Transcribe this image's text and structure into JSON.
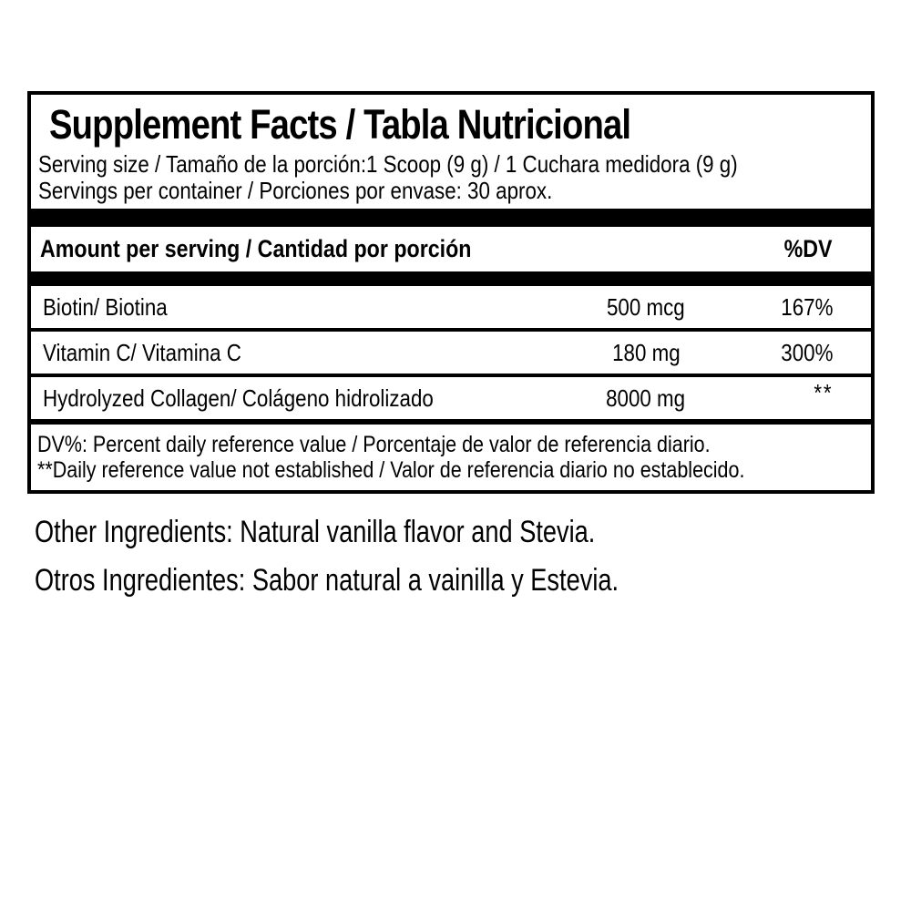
{
  "label": {
    "title": "Supplement Facts / Tabla Nutricional",
    "serving_size": "Serving size / Tamaño de la porción:1 Scoop (9 g) / 1 Cuchara medidora (9 g)",
    "servings_per_container": "Servings per container / Porciones por envase: 30 aprox.",
    "amount_header": "Amount per serving / Cantidad por porción",
    "dv_header": "%DV",
    "rows": [
      {
        "name": "Biotin/ Biotina",
        "amount": "500 mcg",
        "dv": "167%"
      },
      {
        "name": "Vitamin C/ Vitamina C",
        "amount": "180 mg",
        "dv": "300%"
      },
      {
        "name": "Hydrolyzed Collagen/ Colágeno hidrolizado",
        "amount": "8000 mg",
        "dv": "**"
      }
    ],
    "footnotes": [
      "DV%: Percent daily reference value / Porcentaje de valor de referencia diario.",
      "**Daily reference value not established /  Valor de referencia diario no establecido."
    ]
  },
  "other_ingredients": {
    "en": "Other Ingredients: Natural vanilla flavor and Stevia.",
    "es": "Otros Ingredientes: Sabor natural a vainilla y Estevia."
  },
  "colors": {
    "text": "#000000",
    "background": "#ffffff",
    "border": "#000000"
  }
}
